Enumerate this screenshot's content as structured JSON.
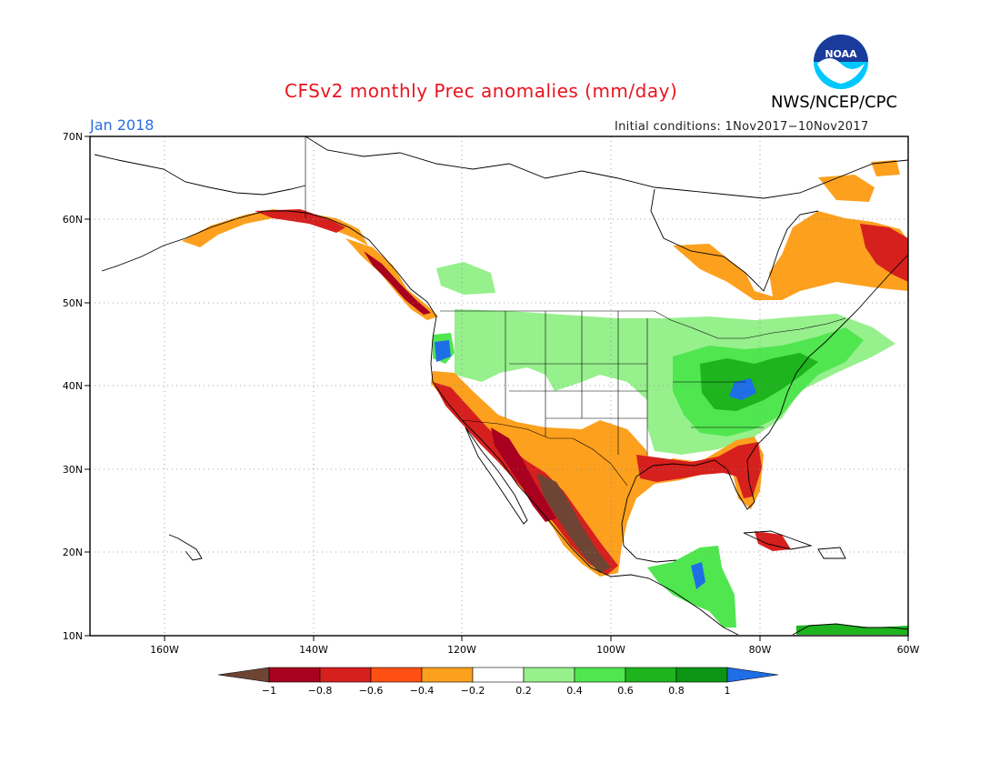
{
  "title": "CFSv2 monthly Prec anomalies (mm/day)",
  "agency": "NWS/NCEP/CPC",
  "month": "Jan 2018",
  "initial_conditions": "Initial conditions: 1Nov2017−10Nov2017",
  "logo_text": "NOAA",
  "lat_labels": [
    "70N",
    "60N",
    "50N",
    "40N",
    "30N",
    "20N",
    "10N"
  ],
  "lon_labels": [
    "160W",
    "140W",
    "120W",
    "100W",
    "80W",
    "60W"
  ],
  "colorbar": {
    "labels": [
      "−1",
      "−0.8",
      "−0.6",
      "−0.4",
      "−0.2",
      "0.2",
      "0.4",
      "0.6",
      "0.8",
      "1"
    ],
    "colors": {
      "lt_neg1": "#6e4434",
      "neg1_neg08": "#a8001e",
      "neg08_neg06": "#d6201e",
      "neg06_neg04": "#ff5014",
      "neg04_neg02": "#fca01e",
      "neg02_02": "#ffffff",
      "p02_04": "#96f08c",
      "p04_06": "#50e650",
      "p06_08": "#1eb41e",
      "p08_1": "#0a9614",
      "gt1": "#1e6ee6"
    }
  },
  "map_data": {
    "extent": {
      "lon": [
        -170,
        -60
      ],
      "lat": [
        10,
        70
      ]
    },
    "projection": "cylindrical equidistant",
    "grid": true
  }
}
